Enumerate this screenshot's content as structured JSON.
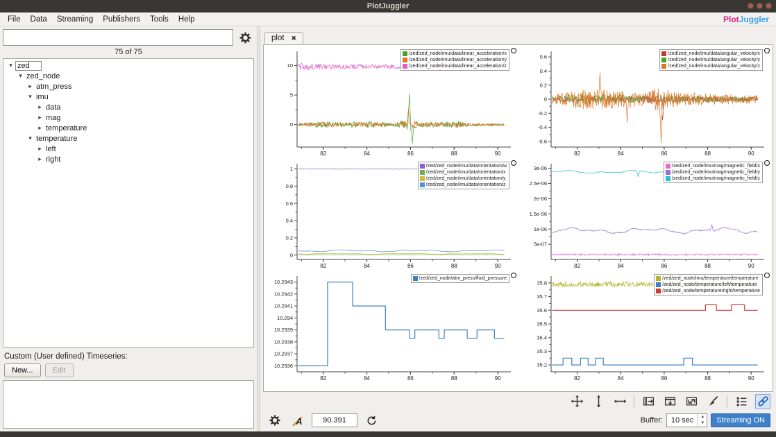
{
  "window": {
    "title": "PlotJuggler"
  },
  "menu": {
    "items": [
      "File",
      "Data",
      "Streaming",
      "Publishers",
      "Tools",
      "Help"
    ],
    "logo_plot": "Plot",
    "logo_juggler": "Juggler"
  },
  "icons": {
    "tree_expanded": "▾",
    "tree_collapsed": "▸",
    "tab_close": "✖",
    "spin_up": "▲",
    "spin_down": "▼",
    "toolbar_icons": [
      "pan-zoom",
      "expand-vertical",
      "expand-horizontal",
      "zoom-fit-horizontal",
      "zoom-fit-vertical",
      "zoom-fit-all",
      "clear-curves-brush",
      "legend-toggle",
      "link-x-axes"
    ],
    "status_icons": [
      "settings-gear",
      "label-font",
      "refresh"
    ]
  },
  "sidebar": {
    "results_count": "75 of 75",
    "custom_timeseries_label": "Custom (User defined) Timeseries:",
    "new_button": "New...",
    "edit_button": "Edit",
    "tree": [
      {
        "label": "zed",
        "depth": 0,
        "state": "expanded",
        "boxed": true
      },
      {
        "label": "zed_node",
        "depth": 1,
        "state": "expanded"
      },
      {
        "label": "atm_press",
        "depth": 2,
        "state": "collapsed"
      },
      {
        "label": "imu",
        "depth": 2,
        "state": "expanded"
      },
      {
        "label": "data",
        "depth": 3,
        "state": "collapsed"
      },
      {
        "label": "mag",
        "depth": 3,
        "state": "collapsed"
      },
      {
        "label": "temperature",
        "depth": 3,
        "state": "collapsed"
      },
      {
        "label": "temperature",
        "depth": 2,
        "state": "expanded"
      },
      {
        "label": "left",
        "depth": 3,
        "state": "collapsed"
      },
      {
        "label": "right",
        "depth": 3,
        "state": "collapsed"
      }
    ]
  },
  "tab": {
    "label": "plot"
  },
  "statusbar": {
    "time_value": "90.391",
    "buffer_label": "Buffer:",
    "buffer_value": "10 sec",
    "streaming_button": "Streaming ON"
  },
  "chart_data": [
    {
      "id": "linear-acceleration",
      "type": "line",
      "xlim": [
        80.8,
        90.6
      ],
      "xdata": [
        80.85,
        90.3
      ],
      "xticks": [
        [
          82,
          "82"
        ],
        [
          84,
          "84"
        ],
        [
          86,
          "86"
        ],
        [
          88,
          "88"
        ],
        [
          90,
          "90"
        ]
      ],
      "ylim": [
        -3.8,
        12.4
      ],
      "yticks": [
        [
          10,
          "10"
        ],
        [
          5,
          "5"
        ],
        [
          0,
          "0"
        ]
      ],
      "series": [
        {
          "name": "/zed/zed_node/imu/data/linear_acceleration/x",
          "color": "#46a32e",
          "kind": "noise",
          "base": 0,
          "amp": 0.5,
          "env": [
            [
              80.85,
              0.5
            ],
            [
              82,
              1.1
            ],
            [
              83,
              0.9
            ],
            [
              84.5,
              1.1
            ],
            [
              85.2,
              0.4
            ],
            [
              85.75,
              1.6
            ],
            [
              86.05,
              2.6
            ],
            [
              86.3,
              1.0
            ],
            [
              87.5,
              0.9
            ],
            [
              88.1,
              1.3
            ],
            [
              88.7,
              0.5
            ],
            [
              90.3,
              0.45
            ]
          ],
          "spikes": [
            [
              85.95,
              5.3
            ],
            [
              86.08,
              -3.2
            ]
          ]
        },
        {
          "name": "/zed/zed_node/imu/data/linear_acceleration/y",
          "color": "#e0762a",
          "kind": "noise",
          "base": 0,
          "amp": 0.42,
          "env": [
            [
              80.85,
              0.5
            ],
            [
              82,
              1.0
            ],
            [
              83,
              0.8
            ],
            [
              84.5,
              1.0
            ],
            [
              85.2,
              0.4
            ],
            [
              85.8,
              1.5
            ],
            [
              86.1,
              2.0
            ],
            [
              86.4,
              0.9
            ],
            [
              87.6,
              0.8
            ],
            [
              88.2,
              1.1
            ],
            [
              88.8,
              0.5
            ],
            [
              90.3,
              0.4
            ]
          ],
          "spikes": [
            [
              85.9,
              2.6
            ]
          ]
        },
        {
          "name": "/zed/zed_node/imu/data/linear_acceleration/z",
          "color": "#e25fc8",
          "kind": "noise",
          "base": 9.8,
          "amp": 0.4,
          "env": [
            [
              80.85,
              1.5
            ],
            [
              82.3,
              1.0
            ],
            [
              86,
              0.9
            ],
            [
              90.3,
              0.85
            ]
          ]
        }
      ]
    },
    {
      "id": "angular-velocity",
      "type": "line",
      "xlim": [
        80.8,
        90.6
      ],
      "xdata": [
        80.85,
        90.3
      ],
      "xticks": [
        [
          82,
          "82"
        ],
        [
          84,
          "84"
        ],
        [
          86,
          "86"
        ],
        [
          88,
          "88"
        ],
        [
          90,
          "90"
        ]
      ],
      "ylim": [
        -0.68,
        0.68
      ],
      "yticks": [
        [
          0.6,
          "0.6"
        ],
        [
          0.4,
          "0.4"
        ],
        [
          0.2,
          "0.2"
        ],
        [
          0,
          "0"
        ],
        [
          -0.2,
          "-0.2"
        ],
        [
          -0.4,
          "-0.4"
        ],
        [
          -0.6,
          "-0.6"
        ]
      ],
      "series": [
        {
          "name": "/zed/zed_node/imu/data/angular_velocity/x",
          "color": "#c23b32",
          "kind": "noise",
          "base": 0,
          "amp": 0.04,
          "env": [
            [
              80.85,
              0.8
            ],
            [
              84,
              1.0
            ],
            [
              85.7,
              1.8
            ],
            [
              86.2,
              1.0
            ],
            [
              90.3,
              0.7
            ]
          ],
          "spikes": [
            [
              85.92,
              -0.3
            ]
          ]
        },
        {
          "name": "/zed/zed_node/imu/data/angular_velocity/y",
          "color": "#46a32e",
          "kind": "noise",
          "base": 0,
          "amp": 0.055,
          "env": [
            [
              80.85,
              0.8
            ],
            [
              82.4,
              1.4
            ],
            [
              84.1,
              1.1
            ],
            [
              85,
              0.8
            ],
            [
              86.6,
              1.0
            ],
            [
              88,
              0.9
            ],
            [
              90.3,
              0.6
            ]
          ]
        },
        {
          "name": "/zed/zed_node/imu/data/angular_velocity/z",
          "color": "#e0762a",
          "kind": "noise",
          "base": 0,
          "amp": 0.12,
          "env": [
            [
              80.85,
              0.5
            ],
            [
              82.3,
              1.3
            ],
            [
              83.4,
              1.1
            ],
            [
              84.2,
              1.2
            ],
            [
              85,
              0.7
            ],
            [
              85.7,
              1.4
            ],
            [
              86.3,
              1.0
            ],
            [
              87.2,
              0.8
            ],
            [
              88.5,
              0.6
            ],
            [
              90.3,
              0.5
            ]
          ],
          "spikes": [
            [
              85.85,
              -0.62
            ],
            [
              83.05,
              0.38
            ],
            [
              84.3,
              -0.33
            ]
          ]
        }
      ]
    },
    {
      "id": "orientation",
      "type": "line",
      "xlim": [
        80.8,
        90.6
      ],
      "xdata": [
        80.85,
        90.3
      ],
      "xticks": [
        [
          82,
          "82"
        ],
        [
          84,
          "84"
        ],
        [
          86,
          "86"
        ],
        [
          88,
          "88"
        ],
        [
          90,
          "90"
        ]
      ],
      "ylim": [
        -0.05,
        1.06
      ],
      "yticks": [
        [
          1,
          "1"
        ],
        [
          0.8,
          "0.8"
        ],
        [
          0.6,
          "0.6"
        ],
        [
          0.4,
          "0.4"
        ],
        [
          0.2,
          "0.2"
        ],
        [
          0,
          "0"
        ]
      ],
      "series": [
        {
          "name": "/zed/zed_node/imu/data/orientation/w",
          "color": "#8f5fc9",
          "kind": "noise",
          "base": 0.998,
          "amp": 0.002
        },
        {
          "name": "/zed/zed_node/imu/data/orientation/x",
          "color": "#6fae4e",
          "kind": "noise",
          "base": 0.004,
          "amp": 0.0025
        },
        {
          "name": "/zed/zed_node/imu/data/orientation/y",
          "color": "#d4bd35",
          "kind": "smooth",
          "base": 0.016,
          "amp": 0.006
        },
        {
          "name": "/zed/zed_node/imu/data/orientation/z",
          "color": "#4f93d8",
          "kind": "smooth",
          "base": 0.05,
          "amp": 0.013
        }
      ]
    },
    {
      "id": "magnetic-field",
      "type": "line",
      "xlim": [
        80.8,
        90.6
      ],
      "xdata": [
        80.85,
        90.3
      ],
      "xticks": [
        [
          82,
          "82"
        ],
        [
          84,
          "84"
        ],
        [
          86,
          "86"
        ],
        [
          88,
          "88"
        ],
        [
          90,
          "90"
        ]
      ],
      "ylim": [
        0,
        3.15e-06
      ],
      "yticks": [
        [
          3e-06,
          "3e-06"
        ],
        [
          2.5e-06,
          "2.5e-06"
        ],
        [
          2e-06,
          "2e-06"
        ],
        [
          1.5e-06,
          "1.5e-06"
        ],
        [
          1e-06,
          "1e-06"
        ],
        [
          5e-07,
          "5e-07"
        ]
      ],
      "series": [
        {
          "name": "/zed/zed_node/imu/mag/magnetic_field/x",
          "color": "#e46bd0",
          "kind": "noise",
          "base": 1.6e-07,
          "amp": 3e-08
        },
        {
          "name": "/zed/zed_node/imu/mag/magnetic_field/y",
          "color": "#9a6fd0",
          "kind": "smooth",
          "base": 9.5e-07,
          "amp": 1.1e-07,
          "spikes": [
            [
              88.2,
              1.15e-06
            ]
          ]
        },
        {
          "name": "/zed/zed_node/imu/mag/magnetic_field/z",
          "color": "#2bbfd4",
          "kind": "smooth",
          "base": 2.88e-06,
          "amp": 6e-08,
          "spikes": [
            [
              84.8,
              2.72e-06
            ]
          ]
        }
      ]
    },
    {
      "id": "fluid-pressure",
      "type": "line",
      "xlim": [
        80.8,
        90.6
      ],
      "xdata": [
        80.85,
        90.3
      ],
      "xticks": [
        [
          82,
          "82"
        ],
        [
          84,
          "84"
        ],
        [
          86,
          "86"
        ],
        [
          88,
          "88"
        ],
        [
          90,
          "90"
        ]
      ],
      "ylim": [
        10.29355,
        10.29435
      ],
      "yticks": [
        [
          10.2943,
          "10.2943"
        ],
        [
          10.2942,
          "10.2942"
        ],
        [
          10.2941,
          "10.2941"
        ],
        [
          10.294,
          "10.294"
        ],
        [
          10.2939,
          "10.2939"
        ],
        [
          10.2938,
          "10.2938"
        ],
        [
          10.2937,
          "10.2937"
        ],
        [
          10.2936,
          "10.2936"
        ]
      ],
      "series": [
        {
          "name": "/zed/zed_node/atm_press/fluid_pressure",
          "color": "#3f7fc4",
          "kind": "steps",
          "points": [
            [
              80.85,
              10.2936
            ],
            [
              82.2,
              10.2936
            ],
            [
              82.2,
              10.2943
            ],
            [
              83.35,
              10.2943
            ],
            [
              83.35,
              10.2941
            ],
            [
              84.85,
              10.2941
            ],
            [
              84.85,
              10.2939
            ],
            [
              85.95,
              10.2939
            ],
            [
              85.95,
              10.29383
            ],
            [
              86.2,
              10.29383
            ],
            [
              86.2,
              10.2939
            ],
            [
              87.3,
              10.2939
            ],
            [
              87.3,
              10.29383
            ],
            [
              87.55,
              10.29383
            ],
            [
              87.55,
              10.2939
            ],
            [
              88.6,
              10.2939
            ],
            [
              88.6,
              10.29383
            ],
            [
              89.05,
              10.29383
            ],
            [
              89.05,
              10.2939
            ],
            [
              89.85,
              10.2939
            ],
            [
              89.85,
              10.29383
            ],
            [
              90.3,
              10.29383
            ]
          ]
        }
      ]
    },
    {
      "id": "temperature",
      "type": "line",
      "xlim": [
        80.8,
        90.6
      ],
      "xdata": [
        80.85,
        90.3
      ],
      "xticks": [
        [
          82,
          "82"
        ],
        [
          84,
          "84"
        ],
        [
          86,
          "86"
        ],
        [
          88,
          "88"
        ],
        [
          90,
          "90"
        ]
      ],
      "ylim": [
        35.15,
        35.85
      ],
      "yticks": [
        [
          35.8,
          "35.8"
        ],
        [
          35.7,
          "35.7"
        ],
        [
          35.6,
          "35.6"
        ],
        [
          35.5,
          "35.5"
        ],
        [
          35.4,
          "35.4"
        ],
        [
          35.3,
          "35.3"
        ],
        [
          35.2,
          "35.2"
        ]
      ],
      "series": [
        {
          "name": "/zed/zed_node/imu/temperature/temperature",
          "color": "#b5b52a",
          "kind": "noise",
          "base": 35.79,
          "amp": 0.02
        },
        {
          "name": "/zed/zed_node/temperature/left/temperature",
          "color": "#3f7fc4",
          "kind": "steps",
          "points": [
            [
              80.85,
              35.2
            ],
            [
              81.35,
              35.2
            ],
            [
              81.35,
              35.25
            ],
            [
              81.75,
              35.25
            ],
            [
              81.75,
              35.2
            ],
            [
              82.15,
              35.2
            ],
            [
              82.15,
              35.25
            ],
            [
              82.5,
              35.25
            ],
            [
              82.5,
              35.2
            ],
            [
              82.85,
              35.2
            ],
            [
              82.85,
              35.25
            ],
            [
              83.2,
              35.25
            ],
            [
              83.2,
              35.2
            ],
            [
              86.9,
              35.2
            ],
            [
              86.9,
              35.25
            ],
            [
              87.3,
              35.25
            ],
            [
              87.3,
              35.2
            ],
            [
              90.3,
              35.2
            ]
          ]
        },
        {
          "name": "/zed/zed_node/temperature/right/temperature",
          "color": "#cc3a30",
          "kind": "steps",
          "points": [
            [
              80.85,
              35.6
            ],
            [
              87.9,
              35.6
            ],
            [
              87.9,
              35.64
            ],
            [
              88.4,
              35.64
            ],
            [
              88.4,
              35.6
            ],
            [
              89.1,
              35.6
            ],
            [
              89.1,
              35.64
            ],
            [
              89.7,
              35.64
            ],
            [
              89.7,
              35.6
            ],
            [
              90.3,
              35.6
            ]
          ]
        }
      ]
    }
  ]
}
